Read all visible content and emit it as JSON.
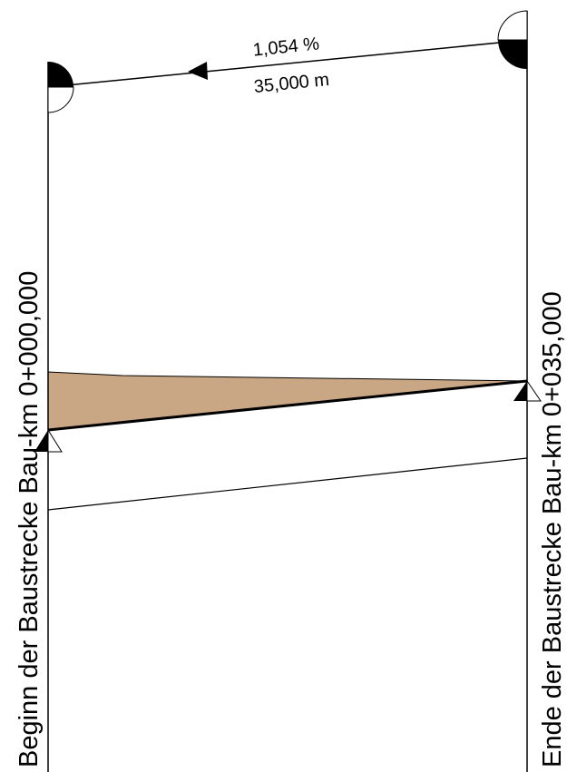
{
  "profile": {
    "grade": "1,054 %",
    "length": "35,000 m",
    "start_label": "Beginn der Baustrecke Bau-km 0+000,000",
    "end_label": "Ende der Baustrecke Bau-km 0+035,000"
  }
}
